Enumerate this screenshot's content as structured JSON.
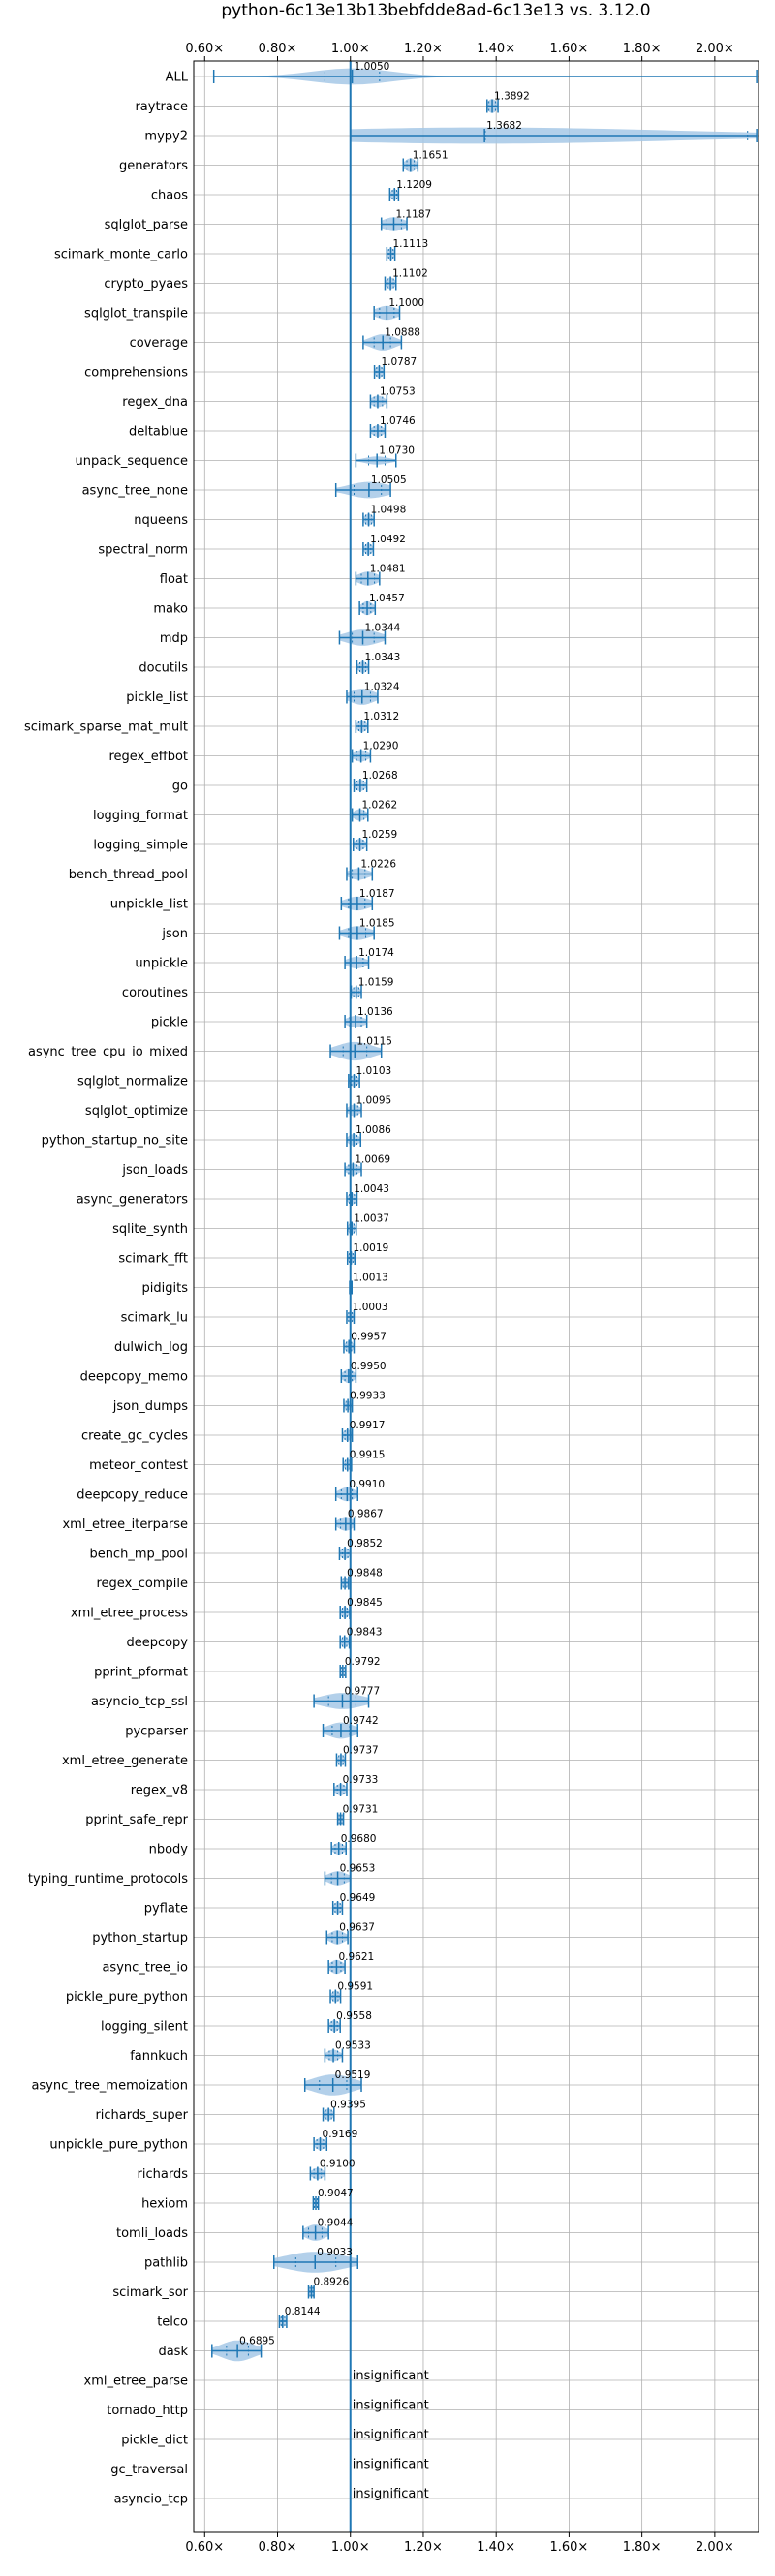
{
  "chart_data": {
    "type": "violin",
    "title": "python-6c13e13b13bebfdde8ad-6c13e13 vs. 3.12.0",
    "x_ticks": [
      0.6,
      0.8,
      1.0,
      1.2,
      1.4,
      1.6,
      1.8,
      2.0
    ],
    "x_tick_labels": [
      "0.60×",
      "0.80×",
      "1.00×",
      "1.20×",
      "1.40×",
      "1.60×",
      "1.80×",
      "2.00×"
    ],
    "xlim": [
      0.57,
      2.12
    ],
    "reference_line": 1.0,
    "grid": true,
    "colors": {
      "line": "#1f77b4",
      "fill": "#a6c8e6",
      "grid": "#b0b0b0"
    },
    "insignificant_text": "insignificant",
    "rows": [
      {
        "name": "ALL",
        "label": "1.0050",
        "value": 1.005,
        "min": 0.625,
        "max": 2.115,
        "q1": 0.93,
        "q3": 1.08,
        "w": 0.7
      },
      {
        "name": "raytrace",
        "label": "1.3892",
        "value": 1.389,
        "min": 1.375,
        "max": 1.405,
        "q1": 1.38,
        "q3": 1.398,
        "w": 0.6
      },
      {
        "name": "mypy2",
        "label": "1.3682",
        "value": 1.368,
        "min": 1.0,
        "max": 2.115,
        "q1": 1.37,
        "q3": 2.09,
        "w": 0.7
      },
      {
        "name": "generators",
        "label": "1.1651",
        "value": 1.165,
        "min": 1.145,
        "max": 1.185,
        "q1": 1.155,
        "q3": 1.175,
        "w": 0.6
      },
      {
        "name": "chaos",
        "label": "1.1209",
        "value": 1.121,
        "min": 1.108,
        "max": 1.132,
        "q1": 1.115,
        "q3": 1.127,
        "w": 0.5
      },
      {
        "name": "sqlglot_parse",
        "label": "1.1187",
        "value": 1.119,
        "min": 1.085,
        "max": 1.155,
        "q1": 1.1,
        "q3": 1.14,
        "w": 0.6
      },
      {
        "name": "scimark_monte_carlo",
        "label": "1.1113",
        "value": 1.111,
        "min": 1.1,
        "max": 1.122,
        "q1": 1.105,
        "q3": 1.117,
        "w": 0.5
      },
      {
        "name": "crypto_pyaes",
        "label": "1.1102",
        "value": 1.11,
        "min": 1.095,
        "max": 1.125,
        "q1": 1.102,
        "q3": 1.118,
        "w": 0.5
      },
      {
        "name": "sqlglot_transpile",
        "label": "1.1000",
        "value": 1.1,
        "min": 1.065,
        "max": 1.135,
        "q1": 1.08,
        "q3": 1.12,
        "w": 0.6
      },
      {
        "name": "coverage",
        "label": "1.0888",
        "value": 1.089,
        "min": 1.035,
        "max": 1.14,
        "q1": 1.065,
        "q3": 1.11,
        "w": 0.7
      },
      {
        "name": "comprehensions",
        "label": "1.0787",
        "value": 1.079,
        "min": 1.066,
        "max": 1.092,
        "q1": 1.072,
        "q3": 1.086,
        "w": 0.5
      },
      {
        "name": "regex_dna",
        "label": "1.0753",
        "value": 1.075,
        "min": 1.055,
        "max": 1.1,
        "q1": 1.065,
        "q3": 1.088,
        "w": 0.5
      },
      {
        "name": "deltablue",
        "label": "1.0746",
        "value": 1.075,
        "min": 1.055,
        "max": 1.095,
        "q1": 1.065,
        "q3": 1.085,
        "w": 0.5
      },
      {
        "name": "unpack_sequence",
        "label": "1.0730",
        "value": 1.073,
        "min": 1.015,
        "max": 1.125,
        "q1": 1.05,
        "q3": 1.095,
        "w": 0.35
      },
      {
        "name": "async_tree_none",
        "label": "1.0505",
        "value": 1.051,
        "min": 0.96,
        "max": 1.11,
        "q1": 1.01,
        "q3": 1.085,
        "w": 0.7
      },
      {
        "name": "nqueens",
        "label": "1.0498",
        "value": 1.05,
        "min": 1.035,
        "max": 1.065,
        "q1": 1.042,
        "q3": 1.058,
        "w": 0.5
      },
      {
        "name": "spectral_norm",
        "label": "1.0492",
        "value": 1.049,
        "min": 1.035,
        "max": 1.063,
        "q1": 1.042,
        "q3": 1.056,
        "w": 0.5
      },
      {
        "name": "float",
        "label": "1.0481",
        "value": 1.048,
        "min": 1.015,
        "max": 1.08,
        "q1": 1.03,
        "q3": 1.066,
        "w": 0.6
      },
      {
        "name": "mako",
        "label": "1.0457",
        "value": 1.046,
        "min": 1.025,
        "max": 1.068,
        "q1": 1.035,
        "q3": 1.056,
        "w": 0.6
      },
      {
        "name": "mdp",
        "label": "1.0344",
        "value": 1.034,
        "min": 0.97,
        "max": 1.095,
        "q1": 1.005,
        "q3": 1.065,
        "w": 0.7
      },
      {
        "name": "docutils",
        "label": "1.0343",
        "value": 1.034,
        "min": 1.018,
        "max": 1.05,
        "q1": 1.026,
        "q3": 1.042,
        "w": 0.5
      },
      {
        "name": "pickle_list",
        "label": "1.0324",
        "value": 1.032,
        "min": 0.99,
        "max": 1.075,
        "q1": 1.01,
        "q3": 1.055,
        "w": 0.7
      },
      {
        "name": "scimark_sparse_mat_mult",
        "label": "1.0312",
        "value": 1.031,
        "min": 1.015,
        "max": 1.048,
        "q1": 1.023,
        "q3": 1.04,
        "w": 0.5
      },
      {
        "name": "regex_effbot",
        "label": "1.0290",
        "value": 1.029,
        "min": 1.005,
        "max": 1.055,
        "q1": 1.017,
        "q3": 1.042,
        "w": 0.5
      },
      {
        "name": "go",
        "label": "1.0268",
        "value": 1.027,
        "min": 1.01,
        "max": 1.045,
        "q1": 1.018,
        "q3": 1.036,
        "w": 0.5
      },
      {
        "name": "logging_format",
        "label": "1.0262",
        "value": 1.026,
        "min": 1.005,
        "max": 1.048,
        "q1": 1.015,
        "q3": 1.037,
        "w": 0.5
      },
      {
        "name": "logging_simple",
        "label": "1.0259",
        "value": 1.026,
        "min": 1.008,
        "max": 1.045,
        "q1": 1.017,
        "q3": 1.035,
        "w": 0.5
      },
      {
        "name": "bench_thread_pool",
        "label": "1.0226",
        "value": 1.023,
        "min": 0.99,
        "max": 1.06,
        "q1": 1.005,
        "q3": 1.04,
        "w": 0.5
      },
      {
        "name": "unpickle_list",
        "label": "1.0187",
        "value": 1.019,
        "min": 0.975,
        "max": 1.06,
        "q1": 0.995,
        "q3": 1.04,
        "w": 0.6
      },
      {
        "name": "json",
        "label": "1.0185",
        "value": 1.019,
        "min": 0.97,
        "max": 1.065,
        "q1": 0.995,
        "q3": 1.042,
        "w": 0.6
      },
      {
        "name": "unpickle",
        "label": "1.0174",
        "value": 1.017,
        "min": 0.985,
        "max": 1.05,
        "q1": 1.0,
        "q3": 1.035,
        "w": 0.5
      },
      {
        "name": "coroutines",
        "label": "1.0159",
        "value": 1.016,
        "min": 1.002,
        "max": 1.03,
        "q1": 1.009,
        "q3": 1.023,
        "w": 0.5
      },
      {
        "name": "pickle",
        "label": "1.0136",
        "value": 1.014,
        "min": 0.985,
        "max": 1.045,
        "q1": 0.998,
        "q3": 1.03,
        "w": 0.5
      },
      {
        "name": "async_tree_cpu_io_mixed",
        "label": "1.0115",
        "value": 1.012,
        "min": 0.945,
        "max": 1.085,
        "q1": 0.98,
        "q3": 1.045,
        "w": 0.8
      },
      {
        "name": "sqlglot_normalize",
        "label": "1.0103",
        "value": 1.01,
        "min": 0.995,
        "max": 1.025,
        "q1": 1.003,
        "q3": 1.018,
        "w": 0.5
      },
      {
        "name": "sqlglot_optimize",
        "label": "1.0095",
        "value": 1.01,
        "min": 0.99,
        "max": 1.03,
        "q1": 1.0,
        "q3": 1.02,
        "w": 0.5
      },
      {
        "name": "python_startup_no_site",
        "label": "1.0086",
        "value": 1.009,
        "min": 0.99,
        "max": 1.028,
        "q1": 0.999,
        "q3": 1.018,
        "w": 0.5
      },
      {
        "name": "json_loads",
        "label": "1.0069",
        "value": 1.007,
        "min": 0.985,
        "max": 1.03,
        "q1": 0.995,
        "q3": 1.018,
        "w": 0.5
      },
      {
        "name": "async_generators",
        "label": "1.0043",
        "value": 1.004,
        "min": 0.99,
        "max": 1.018,
        "q1": 0.997,
        "q3": 1.011,
        "w": 0.5
      },
      {
        "name": "sqlite_synth",
        "label": "1.0037",
        "value": 1.004,
        "min": 0.992,
        "max": 1.016,
        "q1": 0.998,
        "q3": 1.01,
        "w": 0.5
      },
      {
        "name": "scimark_fft",
        "label": "1.0019",
        "value": 1.002,
        "min": 0.992,
        "max": 1.012,
        "q1": 0.997,
        "q3": 1.007,
        "w": 0.5
      },
      {
        "name": "pidigits",
        "label": "1.0013",
        "value": 1.001,
        "min": 0.998,
        "max": 1.004,
        "q1": 0.999,
        "q3": 1.003,
        "w": 0.3
      },
      {
        "name": "scimark_lu",
        "label": "1.0003",
        "value": 1.0,
        "min": 0.99,
        "max": 1.01,
        "q1": 0.995,
        "q3": 1.005,
        "w": 0.5
      },
      {
        "name": "dulwich_log",
        "label": "0.9957",
        "value": 0.996,
        "min": 0.982,
        "max": 1.01,
        "q1": 0.989,
        "q3": 1.003,
        "w": 0.5
      },
      {
        "name": "deepcopy_memo",
        "label": "0.9950",
        "value": 0.995,
        "min": 0.975,
        "max": 1.015,
        "q1": 0.985,
        "q3": 1.005,
        "w": 0.6
      },
      {
        "name": "json_dumps",
        "label": "0.9933",
        "value": 0.993,
        "min": 0.982,
        "max": 1.005,
        "q1": 0.988,
        "q3": 0.999,
        "w": 0.4
      },
      {
        "name": "create_gc_cycles",
        "label": "0.9917",
        "value": 0.992,
        "min": 0.978,
        "max": 1.005,
        "q1": 0.985,
        "q3": 0.999,
        "w": 0.5
      },
      {
        "name": "meteor_contest",
        "label": "0.9915",
        "value": 0.992,
        "min": 0.98,
        "max": 1.003,
        "q1": 0.986,
        "q3": 0.998,
        "w": 0.5
      },
      {
        "name": "deepcopy_reduce",
        "label": "0.9910",
        "value": 0.991,
        "min": 0.96,
        "max": 1.02,
        "q1": 0.975,
        "q3": 1.005,
        "w": 0.6
      },
      {
        "name": "xml_etree_iterparse",
        "label": "0.9867",
        "value": 0.987,
        "min": 0.96,
        "max": 1.01,
        "q1": 0.973,
        "q3": 1.0,
        "w": 0.6
      },
      {
        "name": "bench_mp_pool",
        "label": "0.9852",
        "value": 0.985,
        "min": 0.97,
        "max": 1.0,
        "q1": 0.978,
        "q3": 0.993,
        "w": 0.5
      },
      {
        "name": "regex_compile",
        "label": "0.9848",
        "value": 0.985,
        "min": 0.975,
        "max": 0.995,
        "q1": 0.98,
        "q3": 0.99,
        "w": 0.5
      },
      {
        "name": "xml_etree_process",
        "label": "0.9845",
        "value": 0.985,
        "min": 0.972,
        "max": 0.998,
        "q1": 0.978,
        "q3": 0.991,
        "w": 0.5
      },
      {
        "name": "deepcopy",
        "label": "0.9843",
        "value": 0.984,
        "min": 0.972,
        "max": 0.997,
        "q1": 0.978,
        "q3": 0.99,
        "w": 0.5
      },
      {
        "name": "pprint_pformat",
        "label": "0.9792",
        "value": 0.979,
        "min": 0.972,
        "max": 0.987,
        "q1": 0.975,
        "q3": 0.983,
        "w": 0.4
      },
      {
        "name": "asyncio_tcp_ssl",
        "label": "0.9777",
        "value": 0.978,
        "min": 0.9,
        "max": 1.05,
        "q1": 0.94,
        "q3": 1.015,
        "w": 0.7
      },
      {
        "name": "pycparser",
        "label": "0.9742",
        "value": 0.974,
        "min": 0.925,
        "max": 1.02,
        "q1": 0.95,
        "q3": 0.998,
        "w": 0.7
      },
      {
        "name": "xml_etree_generate",
        "label": "0.9737",
        "value": 0.974,
        "min": 0.962,
        "max": 0.986,
        "q1": 0.968,
        "q3": 0.98,
        "w": 0.5
      },
      {
        "name": "regex_v8",
        "label": "0.9733",
        "value": 0.973,
        "min": 0.955,
        "max": 0.99,
        "q1": 0.964,
        "q3": 0.982,
        "w": 0.5
      },
      {
        "name": "pprint_safe_repr",
        "label": "0.9731",
        "value": 0.973,
        "min": 0.965,
        "max": 0.981,
        "q1": 0.969,
        "q3": 0.977,
        "w": 0.4
      },
      {
        "name": "nbody",
        "label": "0.9680",
        "value": 0.968,
        "min": 0.948,
        "max": 0.988,
        "q1": 0.958,
        "q3": 0.978,
        "w": 0.5
      },
      {
        "name": "typing_runtime_protocols",
        "label": "0.9653",
        "value": 0.965,
        "min": 0.93,
        "max": 1.0,
        "q1": 0.948,
        "q3": 0.983,
        "w": 0.6
      },
      {
        "name": "pyflate",
        "label": "0.9649",
        "value": 0.965,
        "min": 0.952,
        "max": 0.978,
        "q1": 0.958,
        "q3": 0.972,
        "w": 0.5
      },
      {
        "name": "python_startup",
        "label": "0.9637",
        "value": 0.964,
        "min": 0.935,
        "max": 0.993,
        "q1": 0.95,
        "q3": 0.978,
        "w": 0.6
      },
      {
        "name": "async_tree_io",
        "label": "0.9621",
        "value": 0.962,
        "min": 0.94,
        "max": 0.985,
        "q1": 0.95,
        "q3": 0.974,
        "w": 0.6
      },
      {
        "name": "pickle_pure_python",
        "label": "0.9591",
        "value": 0.959,
        "min": 0.945,
        "max": 0.973,
        "q1": 0.952,
        "q3": 0.966,
        "w": 0.5
      },
      {
        "name": "logging_silent",
        "label": "0.9558",
        "value": 0.956,
        "min": 0.94,
        "max": 0.972,
        "q1": 0.948,
        "q3": 0.964,
        "w": 0.5
      },
      {
        "name": "fannkuch",
        "label": "0.9533",
        "value": 0.953,
        "min": 0.93,
        "max": 0.978,
        "q1": 0.942,
        "q3": 0.965,
        "w": 0.5
      },
      {
        "name": "async_tree_memoization",
        "label": "0.9519",
        "value": 0.952,
        "min": 0.875,
        "max": 1.03,
        "q1": 0.915,
        "q3": 0.99,
        "w": 0.9
      },
      {
        "name": "richards_super",
        "label": "0.9395",
        "value": 0.94,
        "min": 0.925,
        "max": 0.955,
        "q1": 0.932,
        "q3": 0.948,
        "w": 0.5
      },
      {
        "name": "unpickle_pure_python",
        "label": "0.9169",
        "value": 0.917,
        "min": 0.9,
        "max": 0.935,
        "q1": 0.908,
        "q3": 0.926,
        "w": 0.5
      },
      {
        "name": "richards",
        "label": "0.9100",
        "value": 0.91,
        "min": 0.89,
        "max": 0.93,
        "q1": 0.9,
        "q3": 0.92,
        "w": 0.5
      },
      {
        "name": "hexiom",
        "label": "0.9047",
        "value": 0.905,
        "min": 0.898,
        "max": 0.912,
        "q1": 0.901,
        "q3": 0.909,
        "w": 0.4
      },
      {
        "name": "tomli_loads",
        "label": "0.9044",
        "value": 0.904,
        "min": 0.87,
        "max": 0.94,
        "q1": 0.885,
        "q3": 0.922,
        "w": 0.7
      },
      {
        "name": "pathlib",
        "label": "0.9033",
        "value": 0.903,
        "min": 0.79,
        "max": 1.02,
        "q1": 0.85,
        "q3": 0.96,
        "w": 0.9
      },
      {
        "name": "scimark_sor",
        "label": "0.8926",
        "value": 0.893,
        "min": 0.885,
        "max": 0.9,
        "q1": 0.889,
        "q3": 0.897,
        "w": 0.4
      },
      {
        "name": "telco",
        "label": "0.8144",
        "value": 0.814,
        "min": 0.805,
        "max": 0.825,
        "q1": 0.81,
        "q3": 0.82,
        "w": 0.5
      },
      {
        "name": "dask",
        "label": "0.6895",
        "value": 0.69,
        "min": 0.62,
        "max": 0.755,
        "q1": 0.66,
        "q3": 0.72,
        "w": 0.9
      },
      {
        "name": "xml_etree_parse",
        "insignificant": true
      },
      {
        "name": "tornado_http",
        "insignificant": true
      },
      {
        "name": "pickle_dict",
        "insignificant": true
      },
      {
        "name": "gc_traversal",
        "insignificant": true
      },
      {
        "name": "asyncio_tcp",
        "insignificant": true
      }
    ]
  }
}
